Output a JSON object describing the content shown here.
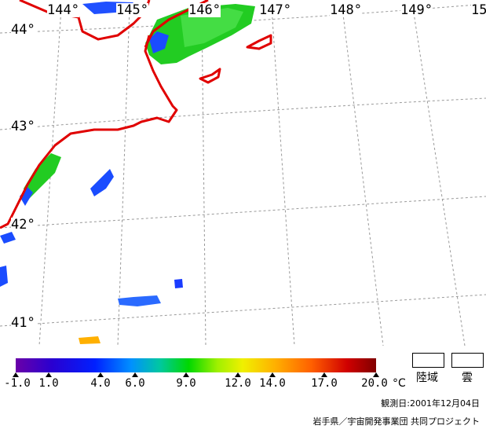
{
  "longitude_labels": [
    "144°",
    "145°",
    "146°",
    "147°",
    "148°",
    "149°",
    "15"
  ],
  "latitude_labels": [
    "44°",
    "43°",
    "42°",
    "41°"
  ],
  "legend": {
    "min": -1.0,
    "max": 20.0,
    "ticks": [
      "-1.0",
      "1.0",
      "4.0",
      "6.0",
      "9.0",
      "12.0",
      "14.0",
      "17.0",
      "20.0"
    ],
    "unit": "°C",
    "colors": [
      "#6a00a8",
      "#0020ff",
      "#00d800",
      "#f0f000",
      "#ff6000",
      "#800000"
    ]
  },
  "mask_legend": {
    "land": "陸域",
    "cloud": "雲"
  },
  "observation_date": "観測日:2001年12月04日",
  "credit": "岩手県／宇宙開発事業団 共同プロジェクト",
  "colors": {
    "coastline": "#e00000",
    "grid": "#999999"
  }
}
